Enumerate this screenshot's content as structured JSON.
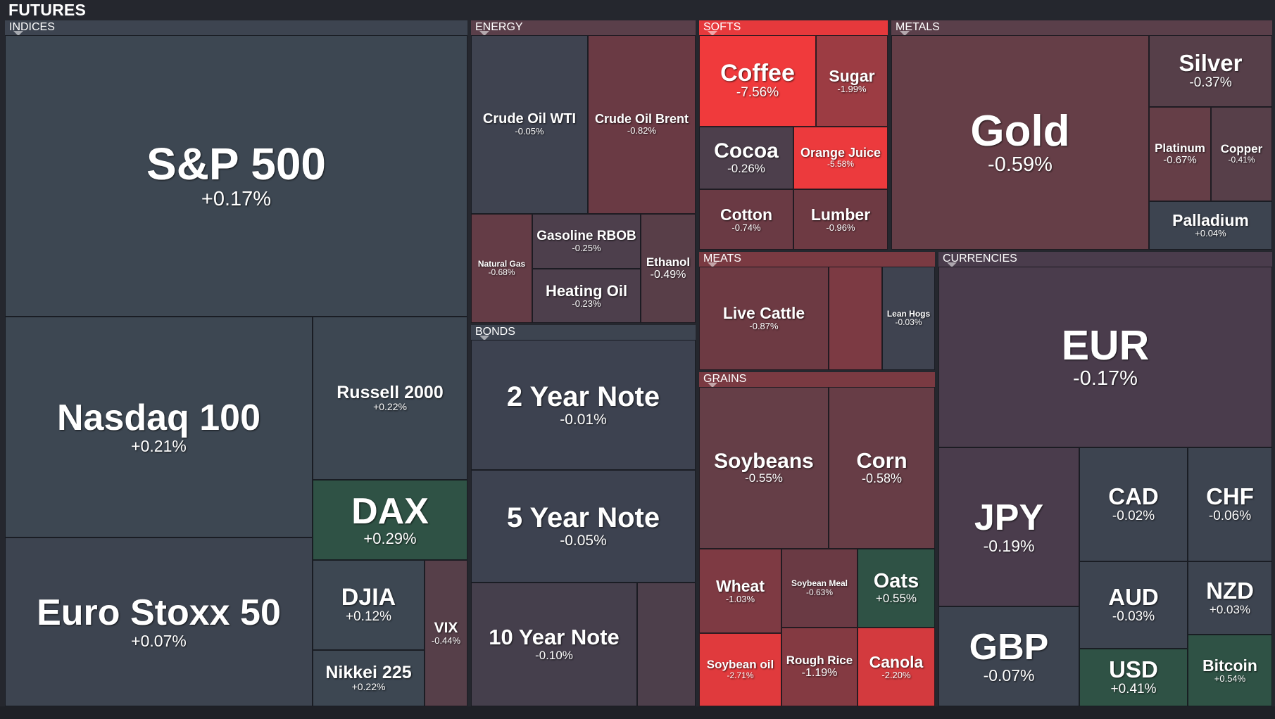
{
  "title": "FUTURES",
  "colors": {
    "background": "#25272e",
    "neutral": "#3d4450",
    "slight_negative": "#5a3f4a",
    "negative": "#7a3a42",
    "strong_negative": "#e6393c",
    "positive": "#2f5245"
  },
  "sections": {
    "indices": "INDICES",
    "energy": "ENERGY",
    "softs": "SOFTS",
    "metals": "METALS",
    "bonds": "BONDS",
    "meats": "MEATS",
    "grains": "GRAINS",
    "currencies": "CURRENCIES"
  },
  "tiles": {
    "sp500": {
      "name": "S&P 500",
      "change": "+0.17%"
    },
    "nasdaq100": {
      "name": "Nasdaq 100",
      "change": "+0.21%"
    },
    "russell2000": {
      "name": "Russell 2000",
      "change": "+0.22%"
    },
    "dax": {
      "name": "DAX",
      "change": "+0.29%"
    },
    "eurostoxx50": {
      "name": "Euro Stoxx 50",
      "change": "+0.07%"
    },
    "djia": {
      "name": "DJIA",
      "change": "+0.12%"
    },
    "nikkei225": {
      "name": "Nikkei 225",
      "change": "+0.22%"
    },
    "vix": {
      "name": "VIX",
      "change": "-0.44%"
    },
    "crude_wti": {
      "name": "Crude Oil WTI",
      "change": "-0.05%"
    },
    "crude_brent": {
      "name": "Crude Oil Brent",
      "change": "-0.82%"
    },
    "natural_gas": {
      "name": "Natural Gas",
      "change": "-0.68%"
    },
    "gasoline_rbob": {
      "name": "Gasoline RBOB",
      "change": "-0.25%"
    },
    "heating_oil": {
      "name": "Heating Oil",
      "change": "-0.23%"
    },
    "ethanol": {
      "name": "Ethanol",
      "change": "-0.49%"
    },
    "note_2y": {
      "name": "2 Year Note",
      "change": "-0.01%"
    },
    "note_5y": {
      "name": "5 Year Note",
      "change": "-0.05%"
    },
    "note_10y": {
      "name": "10 Year Note",
      "change": "-0.10%"
    },
    "coffee": {
      "name": "Coffee",
      "change": "-7.56%"
    },
    "sugar": {
      "name": "Sugar",
      "change": "-1.99%"
    },
    "cocoa": {
      "name": "Cocoa",
      "change": "-0.26%"
    },
    "orange_juice": {
      "name": "Orange Juice",
      "change": "-5.58%"
    },
    "cotton": {
      "name": "Cotton",
      "change": "-0.74%"
    },
    "lumber": {
      "name": "Lumber",
      "change": "-0.96%"
    },
    "gold": {
      "name": "Gold",
      "change": "-0.59%"
    },
    "silver": {
      "name": "Silver",
      "change": "-0.37%"
    },
    "platinum": {
      "name": "Platinum",
      "change": "-0.67%"
    },
    "copper": {
      "name": "Copper",
      "change": "-0.41%"
    },
    "palladium": {
      "name": "Palladium",
      "change": "+0.04%"
    },
    "live_cattle": {
      "name": "Live Cattle",
      "change": "-0.87%"
    },
    "lean_hogs": {
      "name": "Lean Hogs",
      "change": "-0.03%"
    },
    "soybeans": {
      "name": "Soybeans",
      "change": "-0.55%"
    },
    "corn": {
      "name": "Corn",
      "change": "-0.58%"
    },
    "wheat": {
      "name": "Wheat",
      "change": "-1.03%"
    },
    "soybean_meal": {
      "name": "Soybean Meal",
      "change": "-0.63%"
    },
    "oats": {
      "name": "Oats",
      "change": "+0.55%"
    },
    "soybean_oil": {
      "name": "Soybean oil",
      "change": "-2.71%"
    },
    "rough_rice": {
      "name": "Rough Rice",
      "change": "-1.19%"
    },
    "canola": {
      "name": "Canola",
      "change": "-2.20%"
    },
    "eur": {
      "name": "EUR",
      "change": "-0.17%"
    },
    "jpy": {
      "name": "JPY",
      "change": "-0.19%"
    },
    "gbp": {
      "name": "GBP",
      "change": "-0.07%"
    },
    "cad": {
      "name": "CAD",
      "change": "-0.02%"
    },
    "chf": {
      "name": "CHF",
      "change": "-0.06%"
    },
    "aud": {
      "name": "AUD",
      "change": "-0.03%"
    },
    "nzd": {
      "name": "NZD",
      "change": "+0.03%"
    },
    "usd": {
      "name": "USD",
      "change": "+0.41%"
    },
    "bitcoin": {
      "name": "Bitcoin",
      "change": "+0.54%"
    }
  }
}
